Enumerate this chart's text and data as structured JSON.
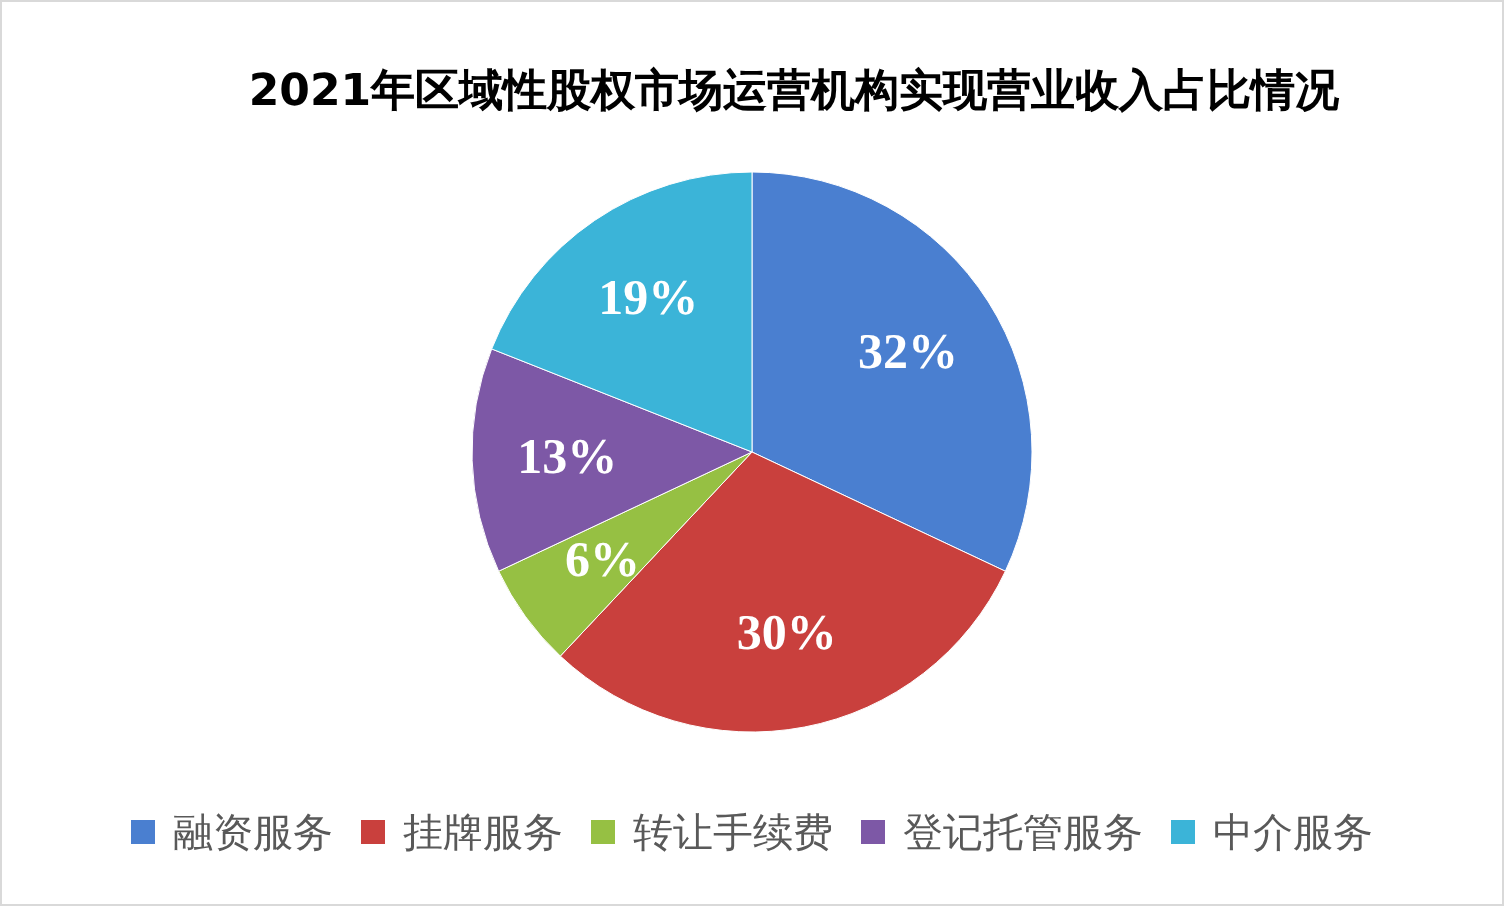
{
  "chart_data": {
    "type": "pie",
    "title": "2021年区域性股权市场运营机构实现营业收入占比情况",
    "categories": [
      "融资服务",
      "挂牌服务",
      "转让手续费",
      "登记托管服务",
      "中介服务"
    ],
    "values": [
      32,
      30,
      6,
      13,
      19
    ],
    "value_labels": [
      "32%",
      "30%",
      "6%",
      "13%",
      "19%"
    ],
    "colors": [
      "#4a7fd0",
      "#c9403d",
      "#96c043",
      "#7d58a6",
      "#3bb4d8"
    ],
    "legend": "bottom"
  }
}
